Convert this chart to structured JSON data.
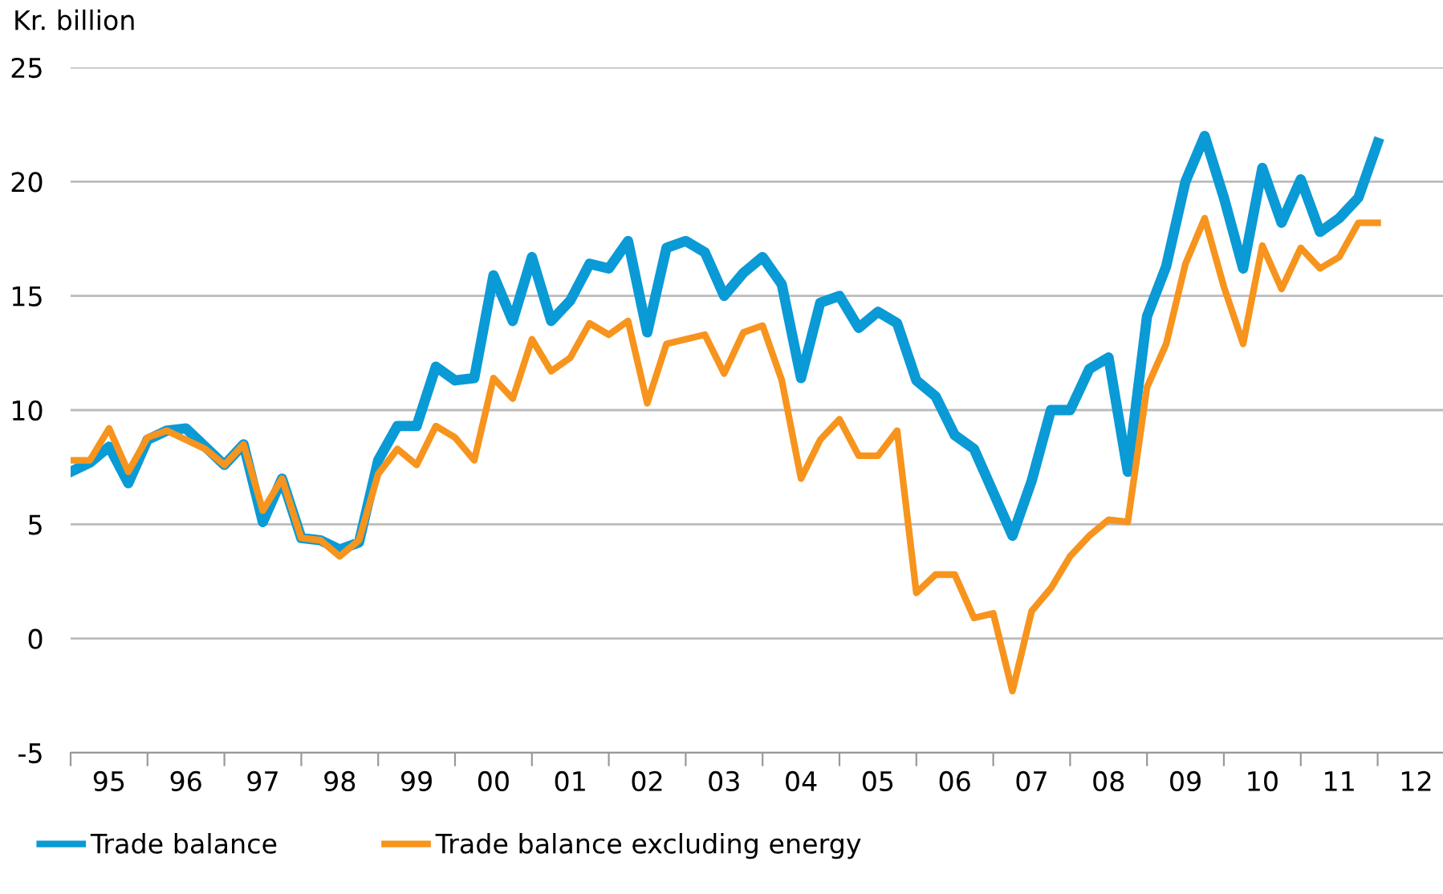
{
  "chart_data": {
    "type": "line",
    "ylabel": "Kr. billion",
    "categories": [
      null,
      null,
      "95",
      null,
      null,
      null,
      "96",
      null,
      null,
      null,
      "97",
      null,
      null,
      null,
      "98",
      null,
      null,
      null,
      "99",
      null,
      null,
      null,
      "00",
      null,
      null,
      null,
      "01",
      null,
      null,
      null,
      "02",
      null,
      null,
      null,
      "03",
      null,
      null,
      null,
      "04",
      null,
      null,
      null,
      "05",
      null,
      null,
      null,
      "06",
      null,
      null,
      null,
      "07",
      null,
      null,
      null,
      "08",
      null,
      null,
      null,
      "09",
      null,
      null,
      null,
      "10",
      null,
      null,
      null,
      "11",
      null,
      null,
      null,
      "12"
    ],
    "series": [
      {
        "name": "Trade balance",
        "color": "#0a9ad6",
        "values": [
          7.3,
          7.7,
          8.4,
          6.8,
          8.7,
          9.1,
          9.2,
          8.4,
          7.6,
          8.5,
          5.1,
          7.0,
          4.4,
          4.3,
          3.9,
          4.2,
          7.8,
          9.3,
          9.3,
          11.9,
          11.3,
          11.4,
          15.9,
          13.9,
          16.7,
          13.9,
          14.8,
          16.4,
          16.2,
          17.4,
          13.4,
          17.1,
          17.4,
          16.9,
          15.0,
          16.0,
          16.7,
          15.5,
          11.4,
          14.7,
          15.0,
          13.6,
          14.3,
          13.8,
          11.3,
          10.6,
          8.9,
          8.3,
          6.4,
          4.5,
          6.9,
          10.0,
          10.0,
          11.8,
          12.3,
          7.3,
          14.1,
          16.3,
          20.0,
          22.0,
          19.3,
          16.2,
          20.6,
          18.2,
          20.1,
          17.8,
          18.4,
          19.3,
          21.7,
          null,
          null
        ]
      },
      {
        "name": "Trade balance excluding energy",
        "color": "#f7941d",
        "values": [
          7.8,
          7.8,
          9.2,
          7.3,
          8.8,
          9.1,
          8.7,
          8.3,
          7.6,
          8.5,
          5.6,
          7.0,
          4.4,
          4.3,
          3.6,
          4.3,
          7.2,
          8.3,
          7.6,
          9.3,
          8.8,
          7.8,
          11.4,
          10.5,
          13.1,
          11.7,
          12.3,
          13.8,
          13.3,
          13.9,
          10.3,
          12.9,
          13.1,
          13.3,
          11.6,
          13.4,
          13.7,
          11.3,
          7.0,
          8.7,
          9.6,
          8.0,
          8.0,
          9.1,
          2.0,
          2.8,
          2.8,
          0.9,
          1.1,
          -2.3,
          1.2,
          2.2,
          3.6,
          4.5,
          5.2,
          5.1,
          11.0,
          12.9,
          16.4,
          18.4,
          15.4,
          12.9,
          17.2,
          15.3,
          17.1,
          16.2,
          16.7,
          18.2,
          18.2,
          null,
          null
        ]
      }
    ],
    "ylim": [
      -5,
      25
    ],
    "yticks": [
      -5,
      0,
      5,
      10,
      15,
      20,
      25
    ],
    "grid": "y",
    "legend": "bottom left",
    "marker": "none",
    "line_style": "solid"
  }
}
